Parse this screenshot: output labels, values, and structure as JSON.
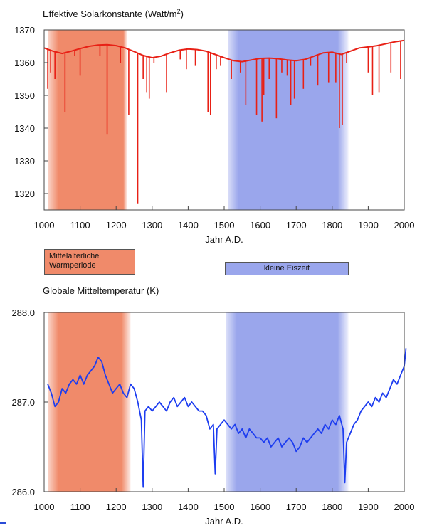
{
  "chart_data": [
    {
      "type": "line",
      "title": "Effektive Solarkonstante (Watt/m²)",
      "title_main": "Effektive Solarkonstante (Watt/m",
      "title_sup": "2",
      "title_end": ")",
      "xlabel": "Jahr A.D.",
      "ylabel": "",
      "xlim": [
        1000,
        2000
      ],
      "ylim": [
        1315,
        1370
      ],
      "xticks": [
        1000,
        1100,
        1200,
        1300,
        1400,
        1500,
        1600,
        1700,
        1800,
        1900,
        2000
      ],
      "yticks": [
        1320,
        1330,
        1340,
        1350,
        1360,
        1370
      ],
      "ytick_labels": [
        "1320",
        "1330",
        "1340",
        "1350",
        "1360",
        "1370"
      ],
      "color": "#e82015",
      "grid": false,
      "series": [
        {
          "baseline": {
            "x": [
              1000,
              1025,
              1050,
              1075,
              1100,
              1125,
              1150,
              1175,
              1200,
              1225,
              1250,
              1275,
              1300,
              1325,
              1350,
              1375,
              1400,
              1425,
              1450,
              1475,
              1500,
              1525,
              1550,
              1575,
              1600,
              1625,
              1650,
              1675,
              1700,
              1725,
              1750,
              1775,
              1800,
              1825,
              1850,
              1875,
              1900,
              1925,
              1950,
              1975,
              2000
            ],
            "y": [
              1364.5,
              1363.5,
              1362.8,
              1363.5,
              1364.3,
              1365.0,
              1365.4,
              1365.5,
              1365.2,
              1364.5,
              1363.4,
              1362.2,
              1361.5,
              1362.0,
              1363.0,
              1363.8,
              1364.2,
              1364.0,
              1363.5,
              1362.5,
              1361.5,
              1360.6,
              1360.3,
              1360.8,
              1361.3,
              1361.4,
              1361.2,
              1360.8,
              1360.6,
              1361.0,
              1362.0,
              1363.0,
              1363.2,
              1362.5,
              1363.5,
              1364.5,
              1364.8,
              1365.2,
              1365.8,
              1366.4,
              1366.8
            ]
          },
          "dips": [
            {
              "x": 1010,
              "y": 1352
            },
            {
              "x": 1018,
              "y": 1357
            },
            {
              "x": 1030,
              "y": 1355
            },
            {
              "x": 1058,
              "y": 1345
            },
            {
              "x": 1085,
              "y": 1362
            },
            {
              "x": 1100,
              "y": 1356
            },
            {
              "x": 1155,
              "y": 1362
            },
            {
              "x": 1175,
              "y": 1338
            },
            {
              "x": 1212,
              "y": 1360
            },
            {
              "x": 1235,
              "y": 1344
            },
            {
              "x": 1260,
              "y": 1317
            },
            {
              "x": 1275,
              "y": 1355
            },
            {
              "x": 1285,
              "y": 1351
            },
            {
              "x": 1292,
              "y": 1349
            },
            {
              "x": 1305,
              "y": 1360
            },
            {
              "x": 1340,
              "y": 1351
            },
            {
              "x": 1378,
              "y": 1361
            },
            {
              "x": 1395,
              "y": 1358
            },
            {
              "x": 1420,
              "y": 1359
            },
            {
              "x": 1455,
              "y": 1345
            },
            {
              "x": 1462,
              "y": 1344
            },
            {
              "x": 1478,
              "y": 1358
            },
            {
              "x": 1490,
              "y": 1359
            },
            {
              "x": 1520,
              "y": 1355
            },
            {
              "x": 1545,
              "y": 1357
            },
            {
              "x": 1560,
              "y": 1347
            },
            {
              "x": 1590,
              "y": 1344
            },
            {
              "x": 1605,
              "y": 1342
            },
            {
              "x": 1610,
              "y": 1350
            },
            {
              "x": 1625,
              "y": 1355
            },
            {
              "x": 1645,
              "y": 1343
            },
            {
              "x": 1660,
              "y": 1357
            },
            {
              "x": 1675,
              "y": 1356
            },
            {
              "x": 1685,
              "y": 1347
            },
            {
              "x": 1695,
              "y": 1349
            },
            {
              "x": 1720,
              "y": 1352
            },
            {
              "x": 1740,
              "y": 1359
            },
            {
              "x": 1760,
              "y": 1353
            },
            {
              "x": 1790,
              "y": 1354
            },
            {
              "x": 1810,
              "y": 1354
            },
            {
              "x": 1820,
              "y": 1340
            },
            {
              "x": 1828,
              "y": 1341
            },
            {
              "x": 1840,
              "y": 1360
            },
            {
              "x": 1900,
              "y": 1357
            },
            {
              "x": 1912,
              "y": 1350
            },
            {
              "x": 1930,
              "y": 1351
            },
            {
              "x": 1963,
              "y": 1357
            },
            {
              "x": 1990,
              "y": 1355
            }
          ]
        }
      ],
      "spans": [
        {
          "x0": 1010,
          "x1": 1230,
          "core_x0": 1040,
          "core_x1": 1220,
          "color": "#f08a6a"
        },
        {
          "x0": 1510,
          "x1": 1845,
          "core_x0": 1540,
          "core_x1": 1815,
          "color": "#9aa6ec"
        }
      ]
    },
    {
      "type": "line",
      "title": "Globale Mitteltemperatur (K)",
      "xlabel": "Jahr A.D.",
      "ylabel": "",
      "xlim": [
        1000,
        2000
      ],
      "ylim": [
        286.0,
        288.0
      ],
      "xticks": [
        1000,
        1100,
        1200,
        1300,
        1400,
        1500,
        1600,
        1700,
        1800,
        1900,
        2000
      ],
      "yticks": [
        286.0,
        287.0,
        288.0
      ],
      "ytick_labels": [
        "286.0",
        "287.0",
        "288.0"
      ],
      "color": "#1d3df0",
      "grid": false,
      "series": [
        {
          "x": [
            1010,
            1020,
            1030,
            1040,
            1050,
            1060,
            1070,
            1080,
            1090,
            1100,
            1110,
            1120,
            1130,
            1140,
            1150,
            1160,
            1170,
            1180,
            1190,
            1200,
            1210,
            1220,
            1230,
            1240,
            1250,
            1260,
            1270,
            1275,
            1280,
            1290,
            1300,
            1310,
            1320,
            1330,
            1340,
            1350,
            1360,
            1370,
            1380,
            1390,
            1400,
            1410,
            1420,
            1430,
            1440,
            1450,
            1460,
            1470,
            1475,
            1480,
            1490,
            1500,
            1510,
            1520,
            1530,
            1540,
            1550,
            1560,
            1570,
            1580,
            1590,
            1600,
            1610,
            1620,
            1630,
            1640,
            1650,
            1660,
            1670,
            1680,
            1690,
            1700,
            1710,
            1720,
            1730,
            1740,
            1750,
            1760,
            1770,
            1780,
            1790,
            1800,
            1810,
            1820,
            1830,
            1835,
            1840,
            1850,
            1860,
            1870,
            1880,
            1890,
            1900,
            1910,
            1920,
            1930,
            1940,
            1950,
            1960,
            1970,
            1980,
            1990,
            2000,
            2005
          ],
          "values": [
            287.2,
            287.1,
            286.95,
            287.0,
            287.15,
            287.1,
            287.2,
            287.25,
            287.2,
            287.3,
            287.2,
            287.3,
            287.35,
            287.4,
            287.5,
            287.45,
            287.3,
            287.2,
            287.1,
            287.15,
            287.2,
            287.1,
            287.05,
            287.2,
            287.15,
            287.0,
            286.8,
            286.05,
            286.9,
            286.95,
            286.9,
            286.95,
            287.0,
            286.95,
            286.9,
            287.0,
            287.05,
            286.95,
            287.0,
            287.05,
            286.95,
            287.0,
            286.95,
            286.9,
            286.9,
            286.85,
            286.7,
            286.75,
            286.2,
            286.7,
            286.75,
            286.8,
            286.75,
            286.7,
            286.75,
            286.65,
            286.7,
            286.6,
            286.7,
            286.65,
            286.6,
            286.6,
            286.55,
            286.6,
            286.5,
            286.55,
            286.6,
            286.5,
            286.55,
            286.6,
            286.55,
            286.45,
            286.5,
            286.6,
            286.55,
            286.6,
            286.65,
            286.7,
            286.65,
            286.75,
            286.7,
            286.8,
            286.75,
            286.85,
            286.7,
            286.1,
            286.55,
            286.65,
            286.75,
            286.8,
            286.9,
            286.95,
            287.0,
            286.95,
            287.05,
            287.0,
            287.1,
            287.05,
            287.15,
            287.25,
            287.2,
            287.3,
            287.4,
            287.6
          ]
        }
      ],
      "spans": [
        {
          "x0": 1010,
          "x1": 1240,
          "core_x0": 1040,
          "core_x1": 1215,
          "color": "#f08a6a"
        },
        {
          "x0": 1505,
          "x1": 1845,
          "core_x0": 1535,
          "core_x1": 1815,
          "color": "#9aa6ec"
        }
      ]
    }
  ],
  "legend": {
    "warm_line1": "Mittelalterliche",
    "warm_line2": "Warmperiode",
    "ice": "kleine Eiszeit"
  }
}
